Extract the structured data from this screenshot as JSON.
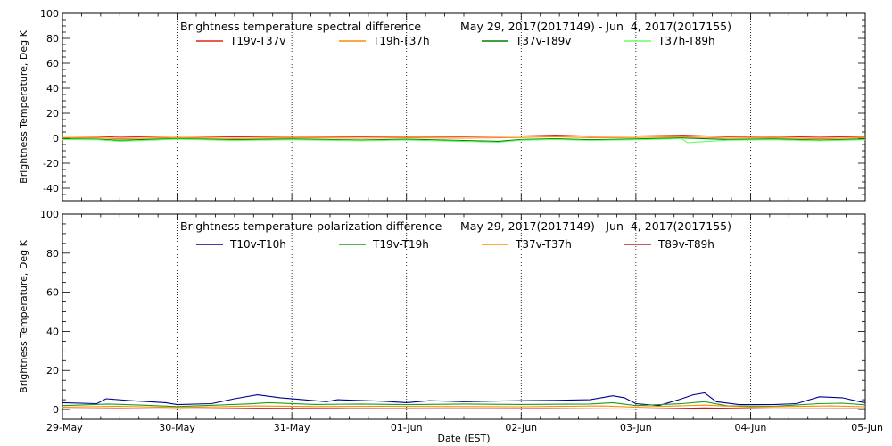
{
  "chart_data": [
    {
      "type": "line",
      "title": "Brightness temperature spectral difference",
      "date_range": "May 29, 2017(2017149) - Jun  4, 2017(2017155)",
      "ylabel": "Brightness Temperature, Deg K",
      "xlabel": "",
      "ylim": [
        -50,
        100
      ],
      "xlim": [
        0,
        7
      ],
      "yticks": [
        -40,
        -20,
        0,
        20,
        40,
        60,
        80,
        100
      ],
      "grid": "vertical dotted at day boundaries",
      "legend_position": "top",
      "series": [
        {
          "name": "T19v-T37v",
          "color": "#e2231a",
          "points": [
            [
              0,
              1.8
            ],
            [
              0.3,
              1.5
            ],
            [
              0.5,
              0.8
            ],
            [
              1.0,
              1.8
            ],
            [
              1.5,
              1.0
            ],
            [
              2.0,
              1.6
            ],
            [
              2.6,
              1.2
            ],
            [
              3.0,
              1.5
            ],
            [
              3.5,
              1.3
            ],
            [
              4.0,
              1.8
            ],
            [
              4.3,
              2.5
            ],
            [
              4.6,
              1.6
            ],
            [
              5.0,
              1.8
            ],
            [
              5.4,
              2.4
            ],
            [
              5.8,
              1.2
            ],
            [
              6.2,
              1.6
            ],
            [
              6.6,
              0.8
            ],
            [
              7.0,
              1.5
            ]
          ]
        },
        {
          "name": "T19h-T37h",
          "color": "#ff8c00",
          "points": [
            [
              0,
              0.5
            ],
            [
              0.3,
              0.3
            ],
            [
              0.5,
              -0.4
            ],
            [
              1.0,
              0.6
            ],
            [
              1.5,
              -0.2
            ],
            [
              2.0,
              0.4
            ],
            [
              2.6,
              0.0
            ],
            [
              3.0,
              0.4
            ],
            [
              3.5,
              0.0
            ],
            [
              4.0,
              0.6
            ],
            [
              4.3,
              1.2
            ],
            [
              4.6,
              0.4
            ],
            [
              5.0,
              0.6
            ],
            [
              5.4,
              1.2
            ],
            [
              5.8,
              0.0
            ],
            [
              6.2,
              0.4
            ],
            [
              6.6,
              -0.4
            ],
            [
              7.0,
              0.4
            ]
          ]
        },
        {
          "name": "T37v-T89v",
          "color": "#008000",
          "points": [
            [
              0,
              -0.5
            ],
            [
              0.3,
              -0.8
            ],
            [
              0.5,
              -1.6
            ],
            [
              1.0,
              -0.3
            ],
            [
              1.5,
              -1.2
            ],
            [
              2.0,
              -0.6
            ],
            [
              2.6,
              -1.4
            ],
            [
              3.0,
              -0.8
            ],
            [
              3.5,
              -1.8
            ],
            [
              3.8,
              -2.4
            ],
            [
              4.0,
              -1.0
            ],
            [
              4.3,
              -0.4
            ],
            [
              4.6,
              -1.2
            ],
            [
              5.0,
              -0.6
            ],
            [
              5.4,
              0.2
            ],
            [
              5.8,
              -1.0
            ],
            [
              6.2,
              -0.6
            ],
            [
              6.6,
              -1.4
            ],
            [
              7.0,
              -0.6
            ]
          ]
        },
        {
          "name": "T37h-T89h",
          "color": "#66ff66",
          "points": [
            [
              0,
              -1.0
            ],
            [
              0.3,
              -1.2
            ],
            [
              0.5,
              -2.4
            ],
            [
              1.0,
              -0.8
            ],
            [
              1.5,
              -1.8
            ],
            [
              2.0,
              -1.2
            ],
            [
              2.6,
              -2.0
            ],
            [
              3.0,
              -1.4
            ],
            [
              3.5,
              -2.6
            ],
            [
              3.8,
              -3.2
            ],
            [
              4.0,
              -1.6
            ],
            [
              4.3,
              -1.0
            ],
            [
              4.6,
              -1.8
            ],
            [
              5.0,
              -1.2
            ],
            [
              5.4,
              -0.4
            ],
            [
              5.45,
              -3.5
            ],
            [
              5.8,
              -1.6
            ],
            [
              6.2,
              -1.2
            ],
            [
              6.6,
              -2.0
            ],
            [
              7.0,
              -1.2
            ]
          ]
        }
      ]
    },
    {
      "type": "line",
      "title": "Brightness temperature polarization difference",
      "date_range": "May 29, 2017(2017149) - Jun  4, 2017(2017155)",
      "ylabel": "Brightness Temperature, Deg K",
      "xlabel": "Date (EST)",
      "ylim": [
        -5,
        100
      ],
      "xlim": [
        0,
        7
      ],
      "yticks": [
        0,
        20,
        40,
        60,
        80,
        100
      ],
      "grid": "vertical dotted at day boundaries",
      "legend_position": "top",
      "series": [
        {
          "name": "T10v-T10h",
          "color": "#00008b",
          "points": [
            [
              0,
              3.5
            ],
            [
              0.3,
              3.0
            ],
            [
              0.38,
              5.5
            ],
            [
              0.6,
              4.5
            ],
            [
              0.9,
              3.5
            ],
            [
              1.0,
              2.5
            ],
            [
              1.3,
              3.0
            ],
            [
              1.5,
              5.5
            ],
            [
              1.7,
              7.5
            ],
            [
              1.9,
              6.0
            ],
            [
              2.1,
              5.0
            ],
            [
              2.3,
              4.0
            ],
            [
              2.4,
              5.0
            ],
            [
              2.8,
              4.2
            ],
            [
              3.0,
              3.5
            ],
            [
              3.2,
              4.5
            ],
            [
              3.5,
              4.0
            ],
            [
              3.8,
              4.3
            ],
            [
              4.0,
              4.5
            ],
            [
              4.3,
              4.7
            ],
            [
              4.6,
              5.0
            ],
            [
              4.8,
              7.0
            ],
            [
              4.9,
              6.0
            ],
            [
              5.0,
              3.0
            ],
            [
              5.2,
              2.0
            ],
            [
              5.4,
              5.5
            ],
            [
              5.5,
              7.5
            ],
            [
              5.6,
              8.5
            ],
            [
              5.7,
              4.0
            ],
            [
              5.9,
              2.5
            ],
            [
              6.2,
              2.5
            ],
            [
              6.4,
              3.0
            ],
            [
              6.6,
              6.5
            ],
            [
              6.8,
              6.0
            ],
            [
              6.95,
              4.0
            ],
            [
              7.0,
              3.5
            ]
          ]
        },
        {
          "name": "T19v-T19h",
          "color": "#1a9e1a",
          "points": [
            [
              0,
              2.0
            ],
            [
              0.4,
              2.8
            ],
            [
              0.7,
              2.2
            ],
            [
              1.0,
              1.5
            ],
            [
              1.6,
              2.8
            ],
            [
              1.8,
              3.5
            ],
            [
              2.2,
              2.6
            ],
            [
              2.6,
              2.8
            ],
            [
              3.0,
              2.5
            ],
            [
              3.5,
              2.8
            ],
            [
              4.0,
              2.6
            ],
            [
              4.6,
              2.8
            ],
            [
              4.8,
              3.5
            ],
            [
              5.0,
              2.0
            ],
            [
              5.4,
              3.0
            ],
            [
              5.6,
              4.0
            ],
            [
              5.8,
              1.8
            ],
            [
              6.2,
              1.6
            ],
            [
              6.6,
              3.0
            ],
            [
              6.8,
              3.2
            ],
            [
              7.0,
              2.4
            ]
          ]
        },
        {
          "name": "T37v-T37h",
          "color": "#ff8c00",
          "points": [
            [
              0,
              1.2
            ],
            [
              0.5,
              1.6
            ],
            [
              1.0,
              1.0
            ],
            [
              1.7,
              1.8
            ],
            [
              2.2,
              1.5
            ],
            [
              2.8,
              1.6
            ],
            [
              3.5,
              1.5
            ],
            [
              4.0,
              1.4
            ],
            [
              4.7,
              1.8
            ],
            [
              5.0,
              1.2
            ],
            [
              5.6,
              2.2
            ],
            [
              6.0,
              1.2
            ],
            [
              6.7,
              1.8
            ],
            [
              7.0,
              1.4
            ]
          ]
        },
        {
          "name": "T89v-T89h",
          "color": "#b22222",
          "points": [
            [
              0,
              0.3
            ],
            [
              0.5,
              0.5
            ],
            [
              1.0,
              0.2
            ],
            [
              1.7,
              0.6
            ],
            [
              2.5,
              0.5
            ],
            [
              3.5,
              0.4
            ],
            [
              4.2,
              0.5
            ],
            [
              5.0,
              0.2
            ],
            [
              5.6,
              0.8
            ],
            [
              6.2,
              0.3
            ],
            [
              7.0,
              0.4
            ]
          ]
        }
      ]
    }
  ],
  "x_tick_labels": [
    "29-May",
    "30-May",
    "31-May",
    "01-Jun",
    "02-Jun",
    "03-Jun",
    "04-Jun",
    "05-Jun"
  ]
}
